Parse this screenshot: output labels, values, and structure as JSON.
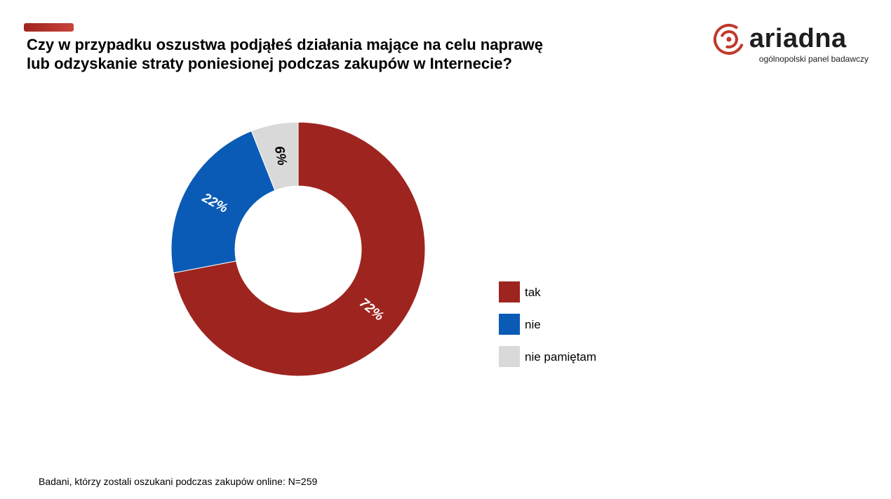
{
  "header": {
    "title_line1": "Czy w przypadku oszustwa podjąłeś działania mające na celu naprawę",
    "title_line2": "lub odzyskanie straty poniesionej podczas zakupów w Internecie?"
  },
  "logo": {
    "name": "ariadna",
    "tagline": "ogólnopolski panel badawczy",
    "icon": "ariadna-spiral-icon",
    "color": "#c0392b"
  },
  "chart_data": {
    "type": "pie",
    "variant": "donut",
    "title": "Czy w przypadku oszustwa podjąłeś działania mające na celu naprawę lub odzyskanie straty poniesionej podczas zakupów w Internecie?",
    "categories": [
      "tak",
      "nie",
      "nie pamiętam"
    ],
    "values": [
      72,
      22,
      6
    ],
    "labels": [
      "72%",
      "22%",
      "6%"
    ],
    "colors": [
      "#9e241f",
      "#0a5bb5",
      "#d9d9d9"
    ],
    "label_colors": [
      "#ffffff",
      "#ffffff",
      "#000000"
    ],
    "legend_position": "right"
  },
  "legend": {
    "items": [
      {
        "label": "tak",
        "color": "#9e241f"
      },
      {
        "label": "nie",
        "color": "#0a5bb5"
      },
      {
        "label": "nie pamiętam",
        "color": "#d9d9d9"
      }
    ]
  },
  "footnote": {
    "text": "Badani, którzy zostali oszukani podczas zakupów online: N=259"
  }
}
